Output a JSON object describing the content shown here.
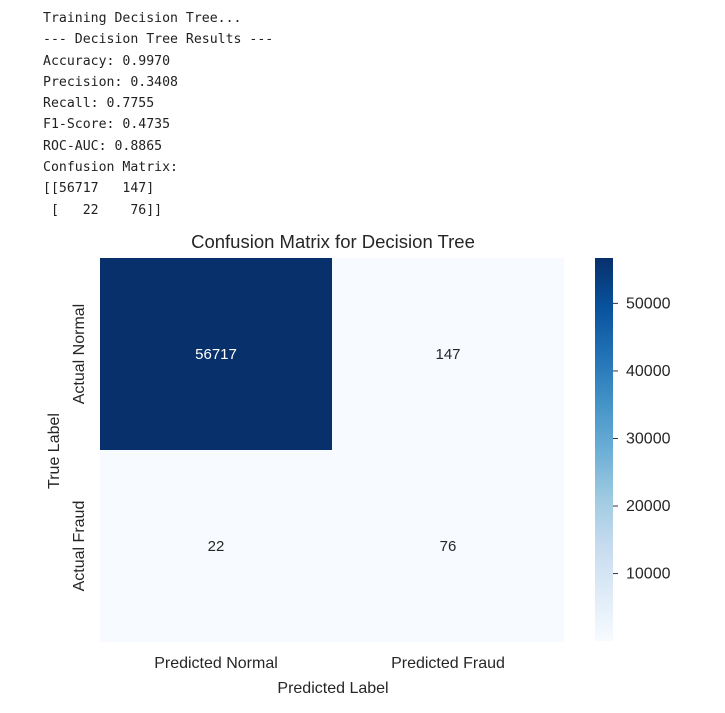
{
  "console": {
    "lines": [
      "Training Decision Tree...",
      "--- Decision Tree Results ---",
      "Accuracy: 0.9970",
      "Precision: 0.3408",
      "Recall: 0.7755",
      "F1-Score: 0.4735",
      "ROC-AUC: 0.8865",
      "Confusion Matrix:",
      "[[56717   147]",
      " [   22    76]]"
    ]
  },
  "chart_data": {
    "type": "heatmap",
    "title": "Confusion Matrix for Decision Tree",
    "xlabel": "Predicted Label",
    "ylabel": "True Label",
    "x_categories": [
      "Predicted Normal",
      "Predicted Fraud"
    ],
    "y_categories": [
      "Actual Normal",
      "Actual Fraud"
    ],
    "values": [
      [
        56717,
        147
      ],
      [
        22,
        76
      ]
    ],
    "colormap": "Blues",
    "colors": {
      "min": "#f7fbff",
      "max": "#08306b"
    },
    "colorbar": {
      "ticks": [
        10000,
        20000,
        30000,
        40000,
        50000
      ],
      "range": [
        22,
        56717
      ]
    },
    "annotations": [
      "56717",
      "147",
      "22",
      "76"
    ]
  }
}
